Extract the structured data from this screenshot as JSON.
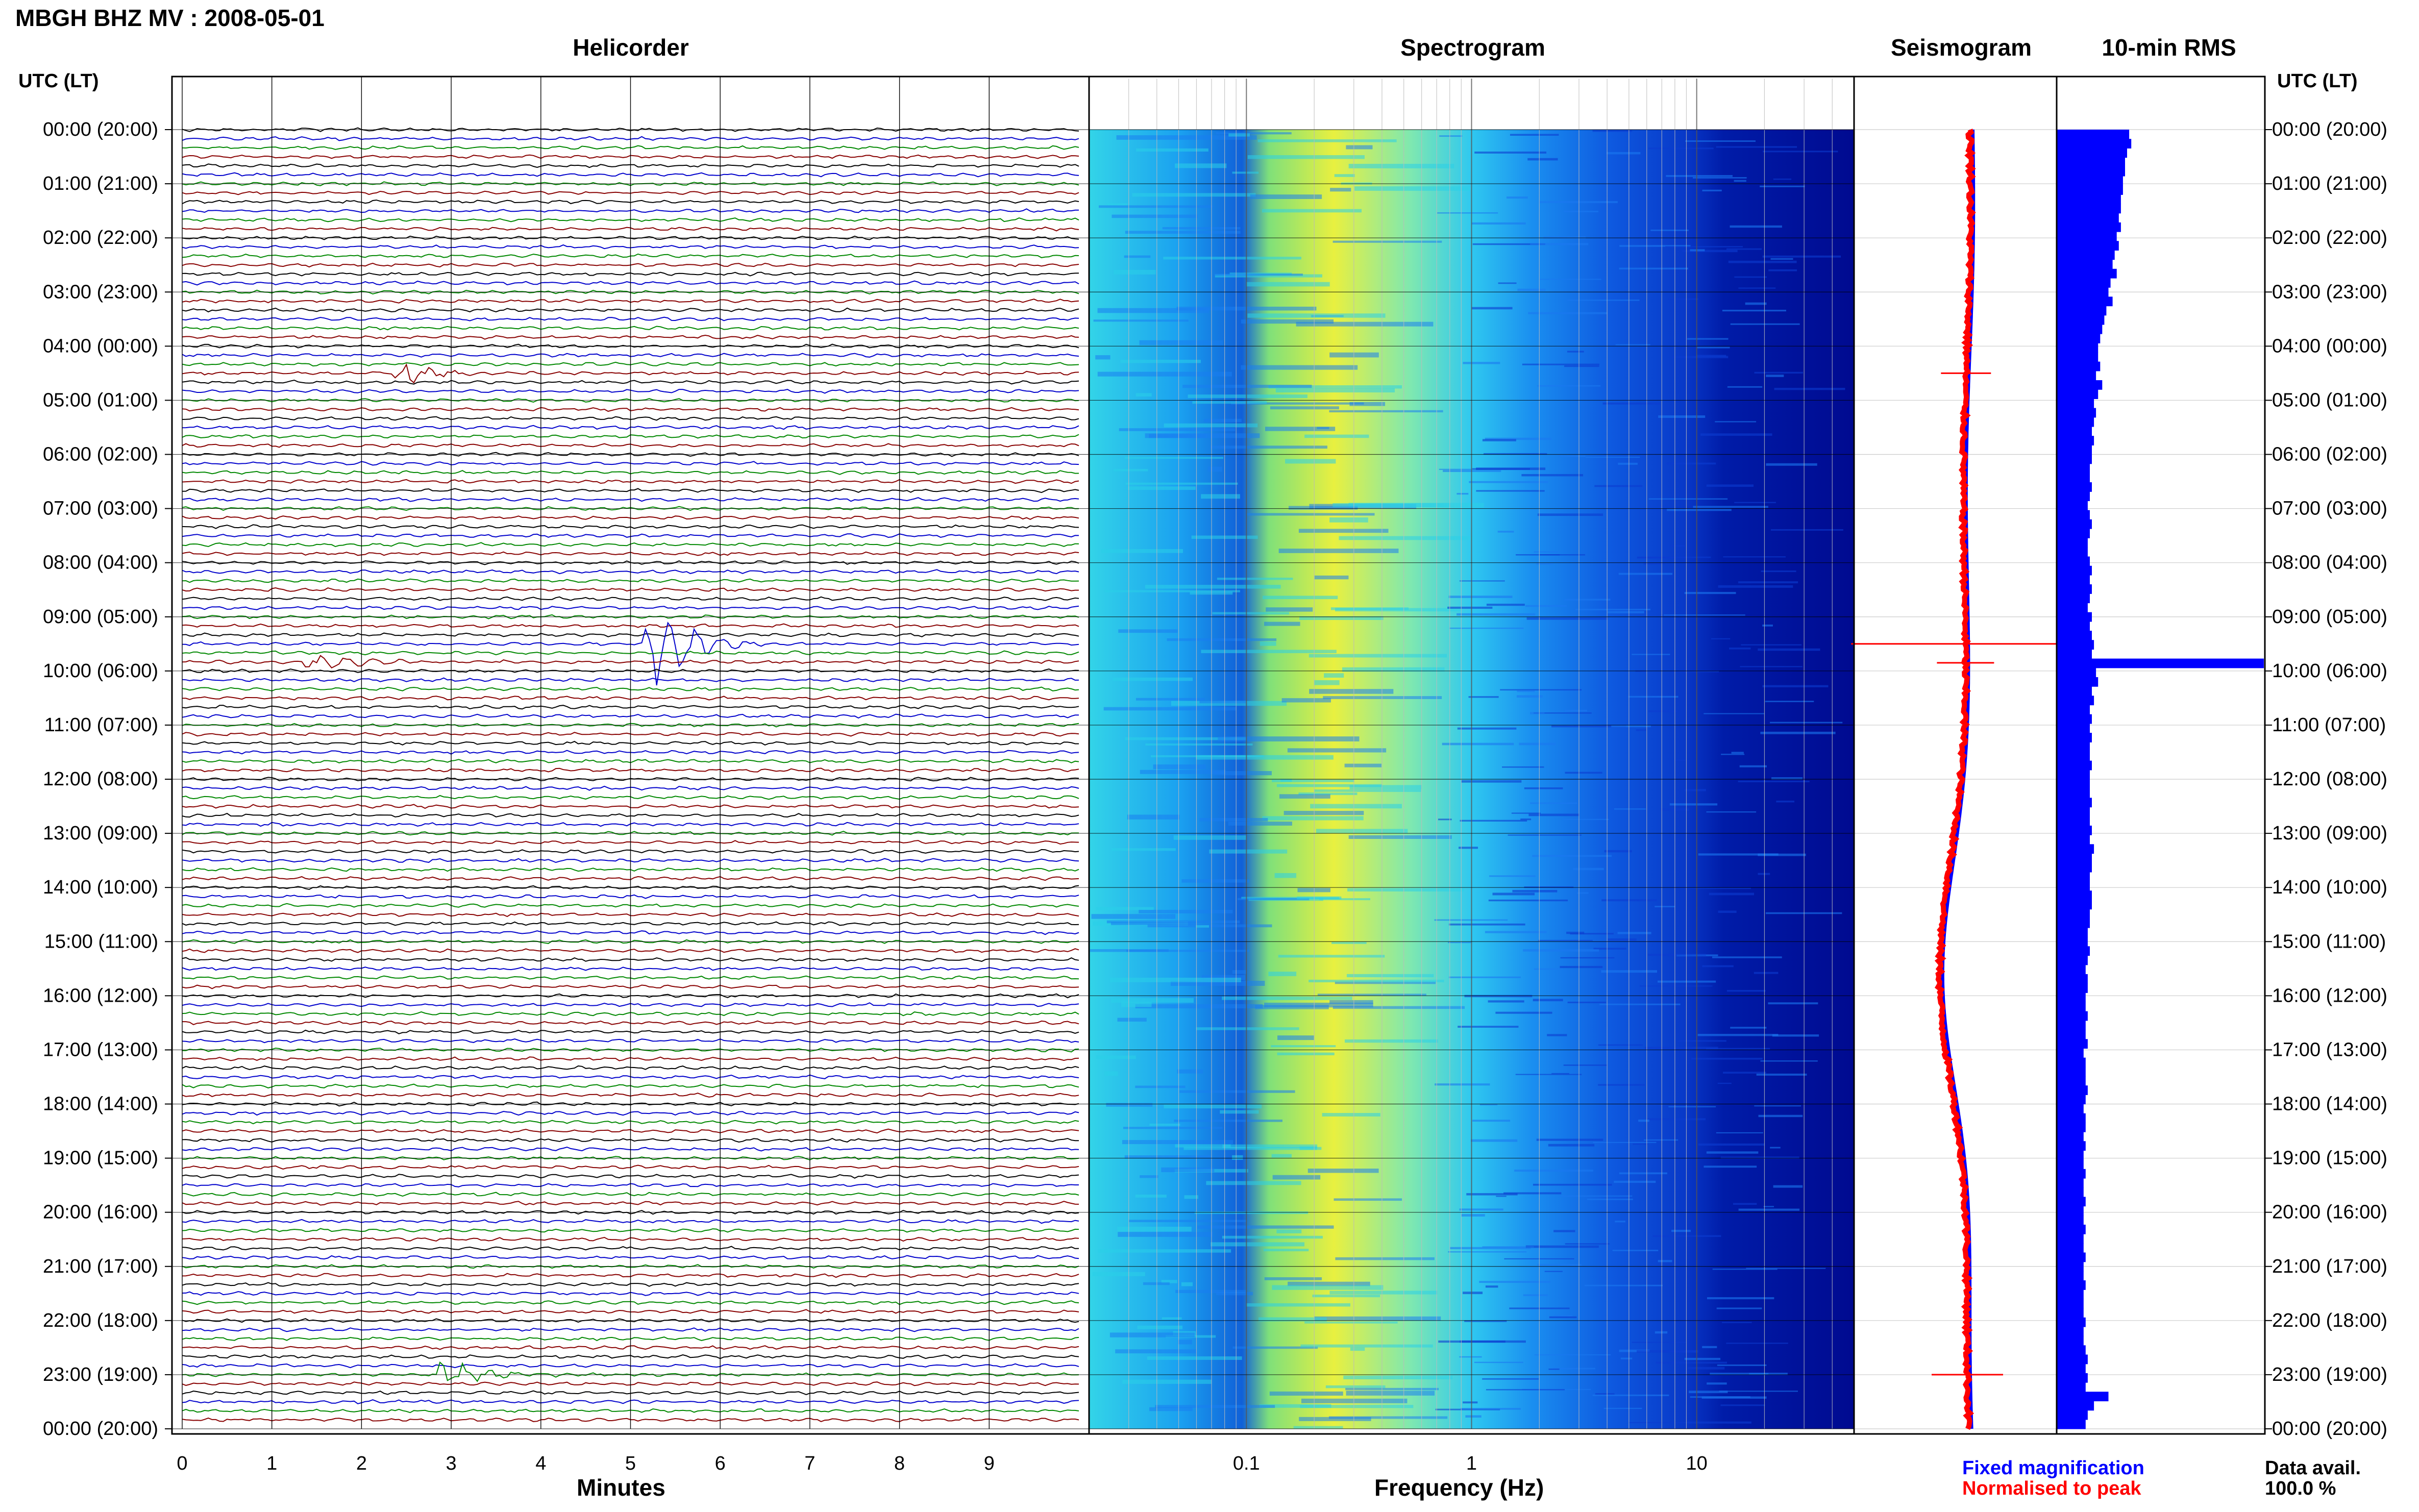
{
  "header": {
    "title": "MBGH BHZ MV : 2008-05-01",
    "utc_label_left": "UTC (LT)",
    "utc_label_right": "UTC (LT)"
  },
  "panels": {
    "helicorder": "Helicorder",
    "spectrogram": "Spectrogram",
    "seismogram": "Seismogram",
    "rms": "10-min RMS"
  },
  "footer": {
    "fixed_magnification": "Fixed magnification",
    "normalised": "Normalised to peak",
    "data_avail_label": "Data avail.",
    "data_avail_value": "100.0 %"
  },
  "colors": {
    "trace_cycle": [
      "#000000",
      "#0000cc",
      "#008800",
      "#880000"
    ],
    "fixed_magnification": "#0000ff",
    "normalised": "#ff0000",
    "rms_bar": "#0000ff"
  },
  "chart_data": [
    {
      "type": "line",
      "title": "Helicorder",
      "xlabel": "Minutes",
      "xlim": [
        0,
        10
      ],
      "xticks": [
        0,
        1,
        2,
        3,
        4,
        5,
        6,
        7,
        8,
        9
      ],
      "row_length_minutes": 10,
      "rows_per_hour": 6,
      "ylabels": [
        "00:00 (20:00)",
        "01:00 (21:00)",
        "02:00 (22:00)",
        "03:00 (23:00)",
        "04:00 (00:00)",
        "05:00 (01:00)",
        "06:00 (02:00)",
        "07:00 (03:00)",
        "08:00 (04:00)",
        "09:00 (05:00)",
        "10:00 (06:00)",
        "11:00 (07:00)",
        "12:00 (08:00)",
        "13:00 (09:00)",
        "14:00 (10:00)",
        "15:00 (11:00)",
        "16:00 (12:00)",
        "17:00 (13:00)",
        "18:00 (14:00)",
        "19:00 (15:00)",
        "20:00 (16:00)",
        "21:00 (17:00)",
        "22:00 (18:00)",
        "23:00 (19:00)",
        "00:00 (20:00)"
      ],
      "events": [
        {
          "hour": 4.5,
          "minute": 2.5,
          "amplitude": 0.7
        },
        {
          "hour": 9.5,
          "minute": 5.3,
          "amplitude": 3.2
        },
        {
          "hour": 9.85,
          "minute": 1.5,
          "amplitude": 0.8
        },
        {
          "hour": 23.0,
          "minute": 3.0,
          "amplitude": 1.0
        }
      ]
    },
    {
      "type": "heatmap",
      "title": "Spectrogram",
      "xlabel": "Frequency (Hz)",
      "xscale": "log",
      "xlim": [
        0.02,
        50
      ],
      "xticks": [
        0.1,
        1,
        10
      ],
      "xtick_labels": [
        "0.1",
        "1",
        "10"
      ],
      "colormap": [
        "#00007f",
        "#0000ff",
        "#007fff",
        "#00ffff",
        "#7fff7f",
        "#ffff00"
      ]
    },
    {
      "type": "line",
      "title": "Seismogram",
      "series": [
        {
          "name": "Fixed magnification",
          "color": "#0000ff"
        },
        {
          "name": "Normalised to peak",
          "color": "#ff0000"
        }
      ]
    },
    {
      "type": "bar",
      "title": "10-min RMS",
      "orientation": "horizontal",
      "relative_values": [
        0.35,
        0.36,
        0.34,
        0.33,
        0.33,
        0.32,
        0.32,
        0.31,
        0.31,
        0.3,
        0.31,
        0.29,
        0.3,
        0.28,
        0.27,
        0.29,
        0.26,
        0.25,
        0.27,
        0.24,
        0.23,
        0.22,
        0.21,
        0.2,
        0.2,
        0.21,
        0.19,
        0.22,
        0.2,
        0.18,
        0.19,
        0.18,
        0.17,
        0.18,
        0.17,
        0.17,
        0.16,
        0.16,
        0.17,
        0.16,
        0.15,
        0.16,
        0.17,
        0.16,
        0.15,
        0.15,
        0.16,
        0.17,
        0.16,
        0.17,
        0.16,
        0.15,
        0.17,
        0.16,
        0.17,
        0.18,
        0.17,
        1.0,
        0.19,
        0.2,
        0.17,
        0.18,
        0.16,
        0.17,
        0.16,
        0.17,
        0.16,
        0.16,
        0.17,
        0.16,
        0.16,
        0.16,
        0.17,
        0.16,
        0.16,
        0.17,
        0.16,
        0.18,
        0.17,
        0.17,
        0.16,
        0.16,
        0.17,
        0.17,
        0.16,
        0.16,
        0.15,
        0.15,
        0.16,
        0.15,
        0.14,
        0.15,
        0.15,
        0.14,
        0.14,
        0.15,
        0.14,
        0.14,
        0.15,
        0.13,
        0.14,
        0.14,
        0.14,
        0.15,
        0.14,
        0.13,
        0.14,
        0.14,
        0.13,
        0.14,
        0.13,
        0.13,
        0.14,
        0.13,
        0.13,
        0.14,
        0.13,
        0.13,
        0.14,
        0.13,
        0.13,
        0.14,
        0.13,
        0.13,
        0.14,
        0.13,
        0.13,
        0.13,
        0.14,
        0.13,
        0.13,
        0.14,
        0.15,
        0.14,
        0.15,
        0.14,
        0.25,
        0.18,
        0.15,
        0.14
      ]
    }
  ]
}
